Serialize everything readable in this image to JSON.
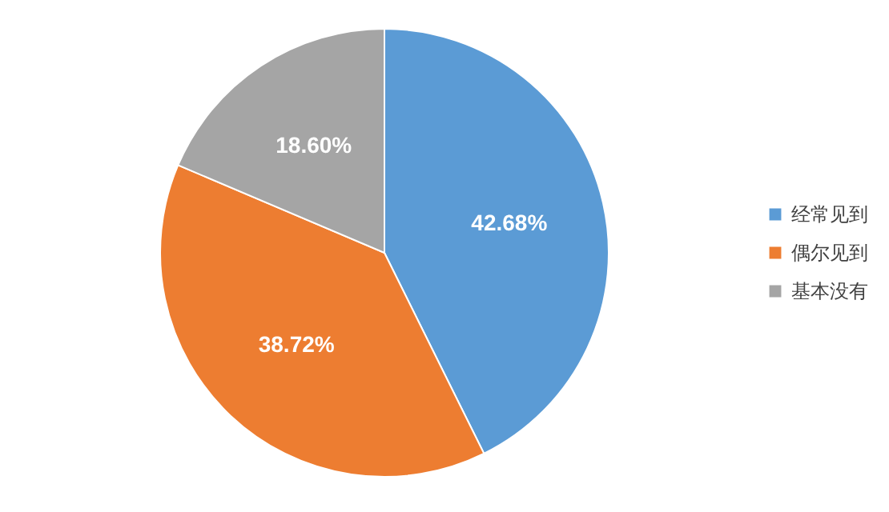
{
  "chart_data": {
    "type": "pie",
    "categories": [
      "经常见到",
      "偶尔见到",
      "基本没有"
    ],
    "values": [
      42.68,
      38.72,
      18.6
    ],
    "colors": [
      "#5b9bd5",
      "#ed7d31",
      "#a5a5a5"
    ],
    "value_labels": [
      "42.68%",
      "38.72%",
      "18.60%"
    ],
    "legend": "right"
  }
}
